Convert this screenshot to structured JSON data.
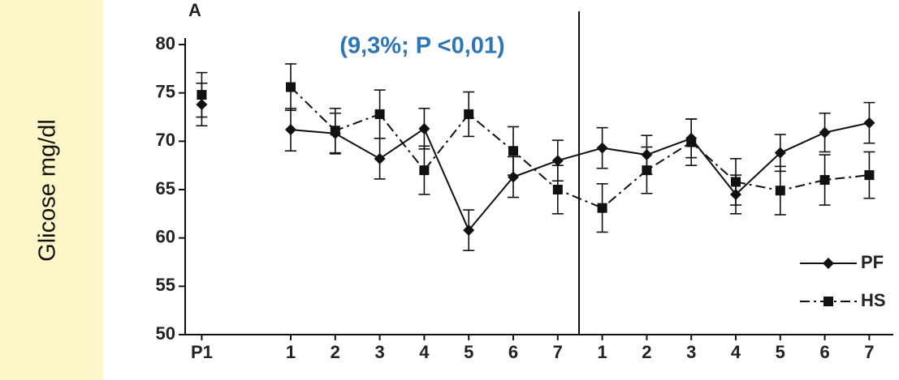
{
  "chart_data": {
    "type": "line",
    "title": "A",
    "ylabel": "Glicose mg/dl",
    "annotation": "(9,3%; P <0,01)",
    "categories": [
      "P1",
      null,
      "1",
      "2",
      "3",
      "4",
      "5",
      "6",
      "7",
      "1",
      "2",
      "3",
      "4",
      "5",
      "6",
      "7"
    ],
    "series": [
      {
        "name": "PF",
        "color": "#111111",
        "linestyle": "solid",
        "marker": "diamond",
        "values": [
          73.8,
          null,
          71.2,
          70.8,
          68.2,
          71.3,
          60.8,
          66.3,
          68.0,
          69.3,
          68.6,
          70.3,
          64.5,
          68.8,
          70.9,
          71.9
        ],
        "errors": [
          2.2,
          null,
          2.2,
          2.1,
          2.1,
          2.1,
          2.1,
          2.1,
          2.1,
          2.1,
          2.0,
          2.0,
          2.0,
          1.9,
          2.0,
          2.1
        ]
      },
      {
        "name": "HS",
        "color": "#111111",
        "linestyle": "dashdot",
        "marker": "square",
        "values": [
          74.8,
          null,
          75.6,
          71.1,
          72.8,
          67.0,
          72.8,
          69.0,
          65.0,
          63.1,
          67.0,
          69.9,
          65.8,
          64.9,
          66.0,
          66.5
        ],
        "errors": [
          2.3,
          null,
          2.4,
          2.3,
          2.5,
          2.5,
          2.3,
          2.5,
          2.5,
          2.5,
          2.4,
          2.4,
          2.4,
          2.5,
          2.6,
          2.4
        ]
      }
    ],
    "ylim": [
      50,
      80
    ],
    "yticks": [
      50,
      55,
      60,
      65,
      70,
      75,
      80
    ],
    "grid": false,
    "legend": "lower right"
  }
}
